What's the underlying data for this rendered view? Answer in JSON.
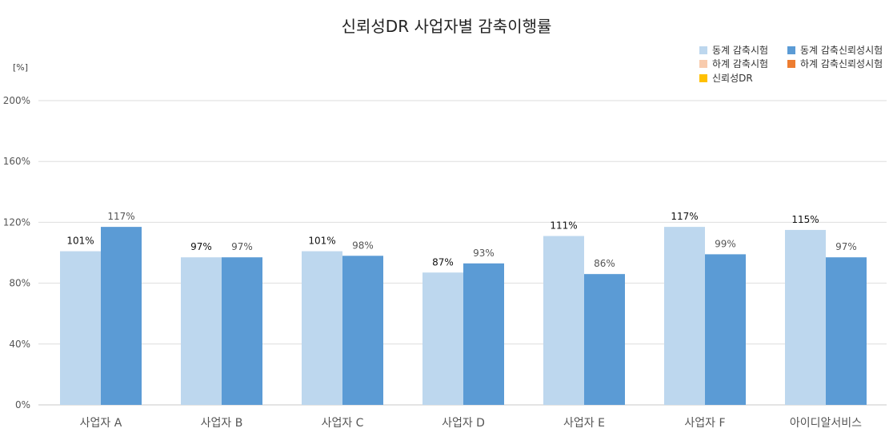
{
  "chart_data": {
    "type": "bar",
    "title": "신뢰성DR 사업자별 감축이행률",
    "ylabel": "[%]",
    "xlabel": "",
    "ylim": [
      0,
      200
    ],
    "yticks": [
      0,
      40,
      80,
      120,
      160,
      200
    ],
    "ytick_labels": [
      "0%",
      "40%",
      "80%",
      "120%",
      "160%",
      "200%"
    ],
    "grid": true,
    "legend_position": "top-right",
    "categories": [
      "사업자 A",
      "사업자 B",
      "사업자 C",
      "사업자 D",
      "사업자 E",
      "사업자 F",
      "아이디알서비스"
    ],
    "series": [
      {
        "name": "동계 감축시험",
        "color": "#bdd7ee",
        "values": [
          101,
          97,
          101,
          87,
          111,
          117,
          115
        ],
        "labels": [
          "101%",
          "97%",
          "101%",
          "87%",
          "111%",
          "117%",
          "115%"
        ]
      },
      {
        "name": "동계 감축신뢰성시험",
        "color": "#5b9bd5",
        "values": [
          117,
          97,
          98,
          93,
          86,
          99,
          97
        ],
        "labels": [
          "117%",
          "97%",
          "98%",
          "93%",
          "86%",
          "99%",
          "97%"
        ]
      }
    ],
    "legend": [
      {
        "name": "동계 감축시험",
        "color": "#bdd7ee"
      },
      {
        "name": "동계 감축신뢰성시험",
        "color": "#5b9bd5"
      },
      {
        "name": "하계 감축시험",
        "color": "#f8cbad"
      },
      {
        "name": "하계 감축신뢰성시험",
        "color": "#ed7d31"
      },
      {
        "name": "신뢰성DR",
        "color": "#ffc000"
      }
    ]
  }
}
